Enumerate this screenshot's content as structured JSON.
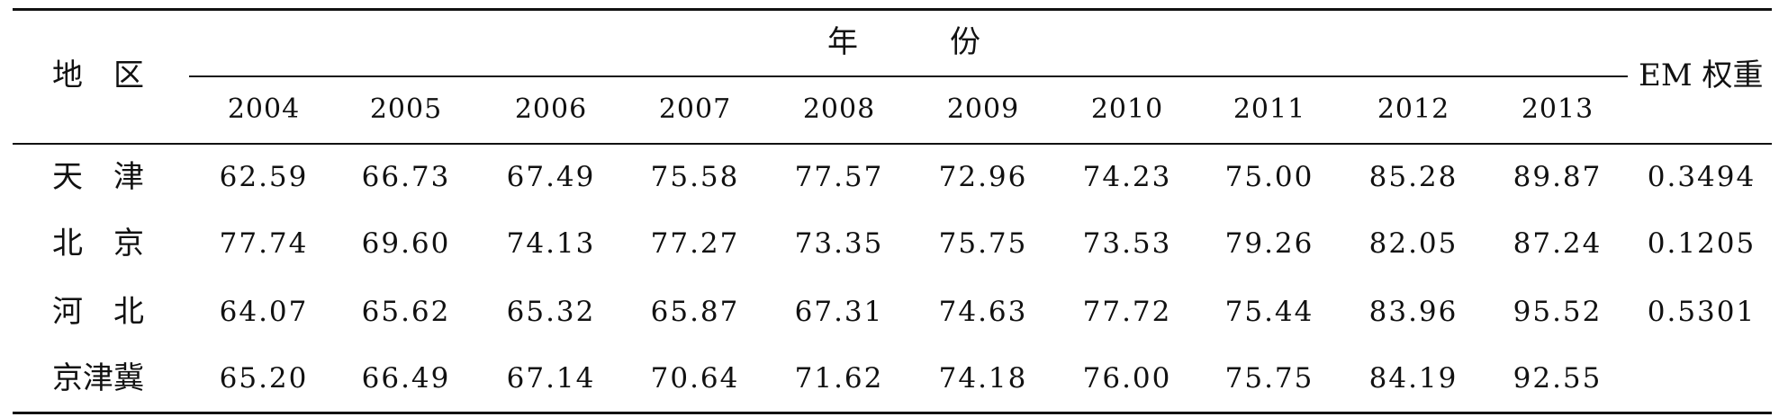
{
  "table": {
    "header": {
      "region_label": "地　区",
      "year_group_label": "年　　　份",
      "weight_label": "EM 权重",
      "years": [
        "2004",
        "2005",
        "2006",
        "2007",
        "2008",
        "2009",
        "2010",
        "2011",
        "2012",
        "2013"
      ]
    },
    "rows": [
      {
        "region": "天　津",
        "values": [
          "62.59",
          "66.73",
          "67.49",
          "75.58",
          "77.57",
          "72.96",
          "74.23",
          "75.00",
          "85.28",
          "89.87"
        ],
        "weight": "0.3494"
      },
      {
        "region": "北　京",
        "values": [
          "77.74",
          "69.60",
          "74.13",
          "77.27",
          "73.35",
          "75.75",
          "73.53",
          "79.26",
          "82.05",
          "87.24"
        ],
        "weight": "0.1205"
      },
      {
        "region": "河　北",
        "values": [
          "64.07",
          "65.62",
          "65.32",
          "65.87",
          "67.31",
          "74.63",
          "77.72",
          "75.44",
          "83.96",
          "95.52"
        ],
        "weight": "0.5301"
      },
      {
        "region": "京津冀",
        "values": [
          "65.20",
          "66.49",
          "67.14",
          "70.64",
          "71.62",
          "74.18",
          "76.00",
          "75.75",
          "84.19",
          "92.55"
        ],
        "weight": ""
      }
    ]
  }
}
